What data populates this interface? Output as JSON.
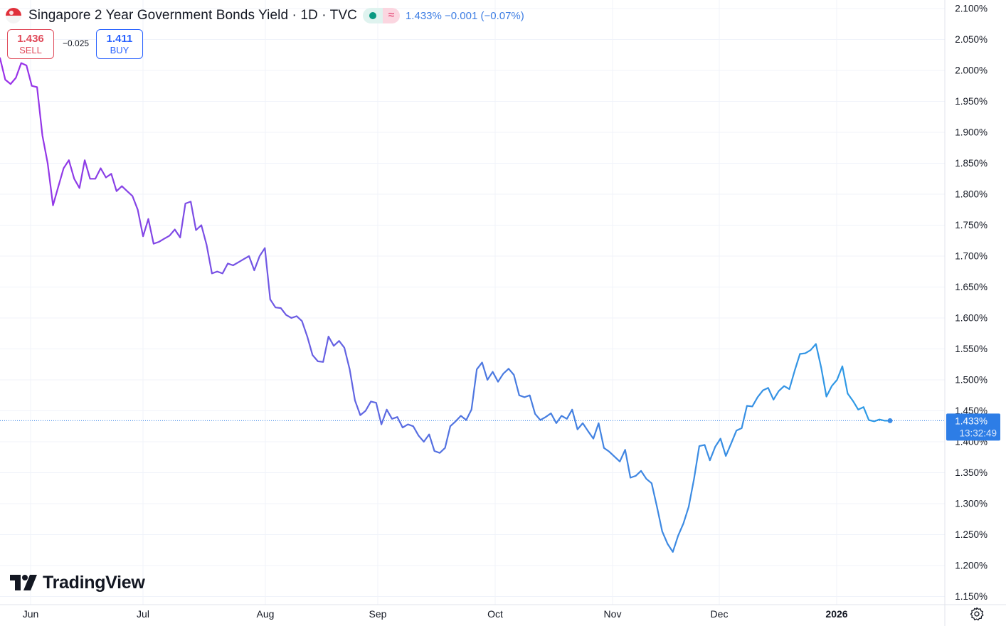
{
  "header": {
    "title": "Singapore 2 Year Government Bonds Yield · 1D · TVC",
    "quote": "1.433% −0.001 (−0.07%)"
  },
  "trade": {
    "sell_price": "1.436",
    "sell_label": "SELL",
    "spread": "−0.025",
    "buy_price": "1.411",
    "buy_label": "BUY"
  },
  "logo": {
    "text": "TradingView"
  },
  "last": {
    "value": "1.433%",
    "time": "13:32:49"
  },
  "colors": {
    "line_start": "#9b30e8",
    "line_mid": "#4a7be0",
    "line_end": "#2b9ee6",
    "last_badge": "#2d7de6",
    "sell": "#e04a5a",
    "buy": "#2962ff"
  },
  "icons": [
    "flag-icon",
    "market-open-icon",
    "wave-icon",
    "tradingview-logo-icon",
    "settings-icon"
  ],
  "chart_data": {
    "type": "line",
    "title": "Singapore 2 Year Government Bonds Yield · 1D · TVC",
    "xlabel": "",
    "ylabel": "",
    "ylim": [
      1.15,
      2.1
    ],
    "grid": true,
    "y_ticks": [
      "2.100%",
      "2.050%",
      "2.000%",
      "1.950%",
      "1.900%",
      "1.850%",
      "1.800%",
      "1.750%",
      "1.700%",
      "1.650%",
      "1.600%",
      "1.550%",
      "1.500%",
      "1.450%",
      "1.400%",
      "1.350%",
      "1.300%",
      "1.250%",
      "1.200%",
      "1.150%"
    ],
    "x_ticks": [
      "Jun",
      "Jul",
      "Aug",
      "Sep",
      "Oct",
      "Nov",
      "Dec",
      "2026"
    ],
    "series": [
      {
        "values": [
          2.02,
          1.985,
          1.978,
          1.988,
          2.012,
          2.008,
          1.975,
          1.973,
          1.895,
          1.85,
          1.782,
          1.812,
          1.842,
          1.855,
          1.825,
          1.81,
          1.855,
          1.825,
          1.825,
          1.842,
          1.827,
          1.833,
          1.805,
          1.813,
          1.805,
          1.797,
          1.775,
          1.732,
          1.76,
          1.72,
          1.723,
          1.728,
          1.733,
          1.743,
          1.73,
          1.785,
          1.788,
          1.742,
          1.75,
          1.718,
          1.672,
          1.675,
          1.672,
          1.688,
          1.685,
          1.69,
          1.695,
          1.7,
          1.677,
          1.7,
          1.713,
          1.63,
          1.617,
          1.616,
          1.605,
          1.6,
          1.603,
          1.595,
          1.57,
          1.54,
          1.53,
          1.529,
          1.57,
          1.555,
          1.563,
          1.552,
          1.517,
          1.467,
          1.443,
          1.45,
          1.465,
          1.463,
          1.428,
          1.452,
          1.437,
          1.44,
          1.423,
          1.428,
          1.425,
          1.41,
          1.4,
          1.412,
          1.385,
          1.382,
          1.39,
          1.425,
          1.433,
          1.442,
          1.435,
          1.452,
          1.517,
          1.528,
          1.5,
          1.513,
          1.497,
          1.51,
          1.518,
          1.508,
          1.475,
          1.472,
          1.475,
          1.445,
          1.435,
          1.44,
          1.446,
          1.43,
          1.442,
          1.437,
          1.452,
          1.42,
          1.43,
          1.417,
          1.405,
          1.43,
          1.39,
          1.384,
          1.376,
          1.368,
          1.387,
          1.342,
          1.345,
          1.353,
          1.34,
          1.333,
          1.295,
          1.255,
          1.235,
          1.222,
          1.248,
          1.268,
          1.295,
          1.34,
          1.393,
          1.395,
          1.37,
          1.392,
          1.405,
          1.377,
          1.397,
          1.418,
          1.422,
          1.458,
          1.457,
          1.472,
          1.483,
          1.487,
          1.468,
          1.482,
          1.49,
          1.485,
          1.515,
          1.542,
          1.543,
          1.548,
          1.558,
          1.52,
          1.473,
          1.49,
          1.5,
          1.522,
          1.478,
          1.466,
          1.452,
          1.456,
          1.435,
          1.433,
          1.436,
          1.434,
          1.434
        ]
      }
    ]
  }
}
